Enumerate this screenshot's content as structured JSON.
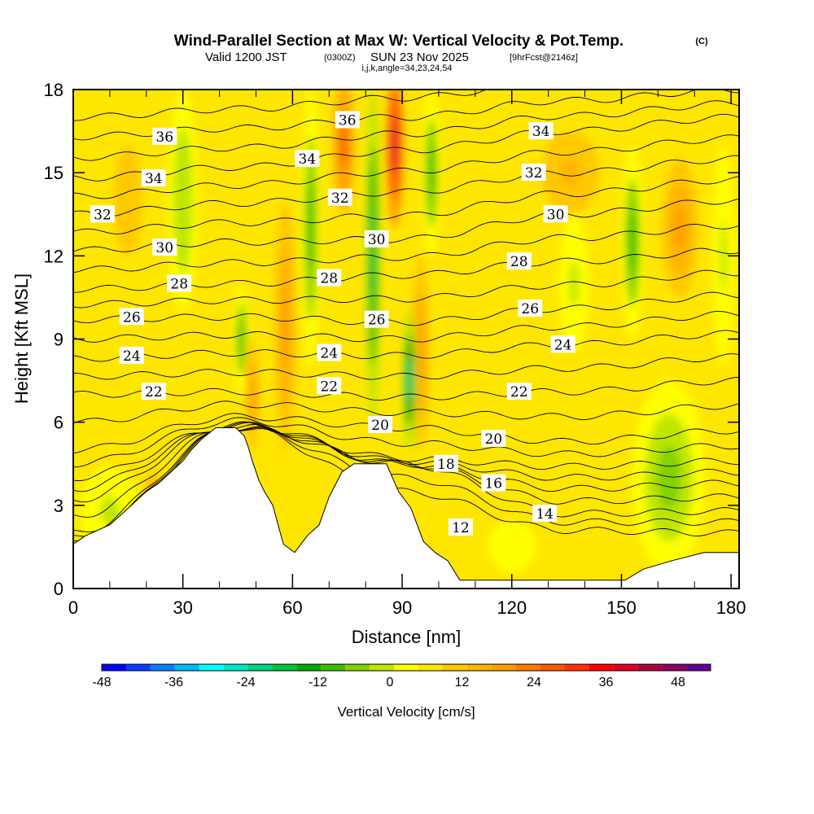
{
  "header": {
    "title": "Wind-Parallel Section at Max W: Vertical Velocity & Pot.Temp.",
    "copyright": "(C)",
    "valid": "Valid 1200 JST",
    "utc": "(0300Z)",
    "date": "SUN 23 Nov 2025",
    "forecast": "[9hrFcst@2146z]",
    "indices": "i,j,k,angle=34,23,24,54"
  },
  "chart_data": {
    "type": "contour",
    "xlabel": "Distance [nm]",
    "ylabel": "Height [Kft MSL]",
    "xlim": [
      0,
      182.2
    ],
    "ylim": [
      0,
      18
    ],
    "xticks": [
      0,
      30,
      60,
      90,
      120,
      150,
      180
    ],
    "xminor_step": 10,
    "yticks": [
      0,
      3,
      6,
      9,
      12,
      15,
      18
    ],
    "colorbar": {
      "label": "Vertical Velocity [cm/s]",
      "ticks": [
        -48,
        -36,
        -24,
        -12,
        0,
        12,
        24,
        36,
        48
      ],
      "range": [
        -50,
        50
      ],
      "step": 4,
      "colors": [
        "#0000ff",
        "#0a3cff",
        "#0a7dff",
        "#00b9ff",
        "#00ffff",
        "#00e6c8",
        "#00d282",
        "#00c33c",
        "#00aa00",
        "#3cbe00",
        "#82d200",
        "#bee600",
        "#ffff00",
        "#ffe600",
        "#ffc800",
        "#ffb400",
        "#ffa000",
        "#ff7d00",
        "#ff5a00",
        "#ff3200",
        "#ff0000",
        "#dc0028",
        "#aa003c",
        "#8c0064",
        "#640096"
      ]
    },
    "background_w": 4,
    "w_cells": [
      {
        "x": 10,
        "y": 2.8,
        "dx": 8,
        "dy": 1.6,
        "w": -3
      },
      {
        "x": 163,
        "y": 4,
        "dx": 10,
        "dy": 3.5,
        "w": -7
      },
      {
        "x": 120,
        "y": 1.5,
        "dx": 10,
        "dy": 1.4,
        "w": -2
      },
      {
        "x": 30,
        "y": 14,
        "dx": 4,
        "dy": 4,
        "w": -6
      },
      {
        "x": 137,
        "y": 11,
        "dx": 4,
        "dy": 2.5,
        "w": -4
      },
      {
        "x": 178,
        "y": 12,
        "dx": 3,
        "dy": 4,
        "w": -4
      },
      {
        "x": 15,
        "y": 14,
        "dx": 6,
        "dy": 3,
        "w": 8
      },
      {
        "x": 136,
        "y": 15,
        "dx": 8,
        "dy": 1.5,
        "w": 12
      },
      {
        "x": 166,
        "y": 13,
        "dx": 5,
        "dy": 2.5,
        "w": 16
      },
      {
        "x": 22,
        "y": 3.5,
        "dx": 2,
        "dy": 0.8,
        "w": 18
      },
      {
        "x": 49,
        "y": 7,
        "dx": 2,
        "dy": 2,
        "w": 14
      },
      {
        "x": 58,
        "y": 9.5,
        "dx": 3,
        "dy": 4.5,
        "w": 14
      },
      {
        "x": 95,
        "y": 8.5,
        "dx": 2.5,
        "dy": 3.5,
        "w": 14
      },
      {
        "x": 74,
        "y": 16,
        "dx": 3,
        "dy": 2.5,
        "w": 24
      },
      {
        "x": 88,
        "y": 16,
        "dx": 2.5,
        "dy": 3,
        "w": 36
      },
      {
        "x": 46,
        "y": 9,
        "dx": 2,
        "dy": 2,
        "w": -12
      },
      {
        "x": 65,
        "y": 13,
        "dx": 2.5,
        "dy": 5,
        "w": -14
      },
      {
        "x": 98,
        "y": 15,
        "dx": 2.5,
        "dy": 3,
        "w": -12
      },
      {
        "x": 153,
        "y": 12.5,
        "dx": 3,
        "dy": 3.5,
        "w": -14
      },
      {
        "x": 82,
        "y": 12,
        "dx": 2,
        "dy": 6,
        "w": -20
      },
      {
        "x": 92,
        "y": 7.5,
        "dx": 2,
        "dy": 2.5,
        "w": -24
      }
    ],
    "terrain": [
      [
        0,
        1.6
      ],
      [
        3.3,
        1.9
      ],
      [
        10,
        2.3
      ],
      [
        13.4,
        2.7
      ],
      [
        16.7,
        3.1
      ],
      [
        20,
        3.5
      ],
      [
        23.4,
        3.8
      ],
      [
        26.7,
        4.2
      ],
      [
        30,
        4.6
      ],
      [
        32.3,
        5.0
      ],
      [
        35.2,
        5.4
      ],
      [
        39,
        5.8
      ],
      [
        44.5,
        5.8
      ],
      [
        46.8,
        5.5
      ],
      [
        47.9,
        5.1
      ],
      [
        49,
        4.6
      ],
      [
        50.8,
        3.9
      ],
      [
        52.3,
        3.5
      ],
      [
        54.6,
        3.0
      ],
      [
        57.5,
        1.6
      ],
      [
        60.6,
        1.3
      ],
      [
        64,
        1.9
      ],
      [
        67.3,
        2.3
      ],
      [
        70,
        3.3
      ],
      [
        73.5,
        4.2
      ],
      [
        76.8,
        4.5
      ],
      [
        85.7,
        4.5
      ],
      [
        89,
        3.5
      ],
      [
        92.4,
        2.9
      ],
      [
        95.8,
        1.7
      ],
      [
        99,
        1.3
      ],
      [
        102.5,
        1.0
      ],
      [
        105.8,
        0.3
      ],
      [
        151,
        0.3
      ],
      [
        156,
        0.7
      ],
      [
        163.7,
        1.0
      ],
      [
        172.6,
        1.3
      ],
      [
        182.2,
        1.3
      ]
    ],
    "theta_profile_x": [
      0,
      45,
      90,
      135,
      182.2
    ],
    "theta_contours": [
      {
        "level": 36,
        "h": [
          16.3,
          16.6,
          17.0,
          17.6,
          18.0
        ]
      },
      {
        "level": 34,
        "h": [
          14.8,
          15.2,
          15.8,
          16.5,
          17.0
        ]
      },
      {
        "level": 32,
        "h": [
          13.5,
          13.9,
          14.3,
          15.0,
          15.5
        ]
      },
      {
        "level": 30,
        "h": [
          12.2,
          12.5,
          12.6,
          13.5,
          14.0
        ]
      },
      {
        "level": 28,
        "h": [
          10.8,
          11.0,
          11.3,
          11.8,
          12.2
        ]
      },
      {
        "level": 26,
        "h": [
          9.7,
          9.8,
          9.6,
          10.1,
          10.6
        ]
      },
      {
        "level": 24,
        "h": [
          8.3,
          8.5,
          8.4,
          8.8,
          9.2
        ]
      },
      {
        "level": 22,
        "h": [
          7.0,
          7.1,
          6.9,
          7.1,
          7.5
        ]
      },
      {
        "level": 20,
        "h": [
          5.0,
          6.2,
          5.8,
          5.3,
          5.7
        ]
      },
      {
        "level": 18,
        "h": [
          4.0,
          5.9,
          4.7,
          4.4,
          4.6
        ]
      },
      {
        "level": 16,
        "h": [
          3.2,
          5.9,
          4.5,
          3.6,
          3.8
        ]
      },
      {
        "level": 14,
        "h": [
          2.0,
          5.8,
          4.5,
          2.7,
          2.8
        ]
      },
      {
        "level": 12,
        "h": [
          1.6,
          5.8,
          3.5,
          2.1,
          2.0
        ]
      }
    ],
    "theta_labels": [
      {
        "text": "36",
        "x": 25,
        "y": 16.3
      },
      {
        "text": "36",
        "x": 75,
        "y": 16.9
      },
      {
        "text": "34",
        "x": 22,
        "y": 14.8
      },
      {
        "text": "34",
        "x": 64,
        "y": 15.5
      },
      {
        "text": "34",
        "x": 128,
        "y": 16.5
      },
      {
        "text": "32",
        "x": 8,
        "y": 13.5
      },
      {
        "text": "32",
        "x": 73,
        "y": 14.1
      },
      {
        "text": "32",
        "x": 126,
        "y": 15.0
      },
      {
        "text": "30",
        "x": 25,
        "y": 12.3
      },
      {
        "text": "30",
        "x": 83,
        "y": 12.6
      },
      {
        "text": "30",
        "x": 132,
        "y": 13.5
      },
      {
        "text": "28",
        "x": 29,
        "y": 11.0
      },
      {
        "text": "28",
        "x": 70,
        "y": 11.2
      },
      {
        "text": "28",
        "x": 122,
        "y": 11.8
      },
      {
        "text": "26",
        "x": 16,
        "y": 9.8
      },
      {
        "text": "26",
        "x": 83,
        "y": 9.7
      },
      {
        "text": "26",
        "x": 125,
        "y": 10.1
      },
      {
        "text": "24",
        "x": 16,
        "y": 8.4
      },
      {
        "text": "24",
        "x": 70,
        "y": 8.5
      },
      {
        "text": "24",
        "x": 134,
        "y": 8.8
      },
      {
        "text": "22",
        "x": 22,
        "y": 7.1
      },
      {
        "text": "22",
        "x": 70,
        "y": 7.3
      },
      {
        "text": "22",
        "x": 122,
        "y": 7.1
      },
      {
        "text": "20",
        "x": 84,
        "y": 5.9
      },
      {
        "text": "20",
        "x": 115,
        "y": 5.4
      },
      {
        "text": "18",
        "x": 102,
        "y": 4.5
      },
      {
        "text": "16",
        "x": 115,
        "y": 3.8
      },
      {
        "text": "14",
        "x": 129,
        "y": 2.7
      },
      {
        "text": "12",
        "x": 106,
        "y": 2.2
      }
    ]
  }
}
